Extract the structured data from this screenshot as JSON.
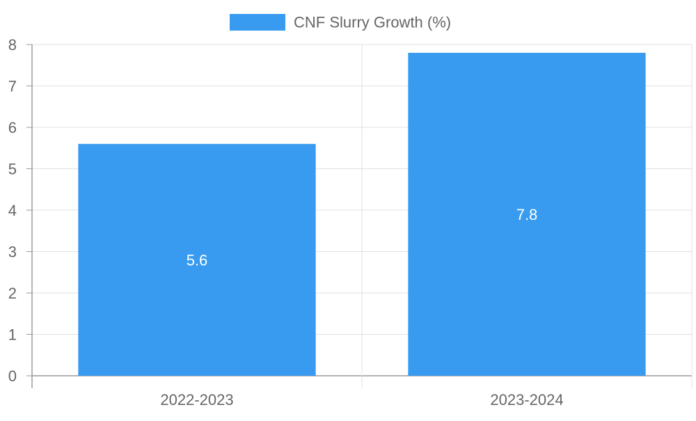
{
  "chart_data": {
    "type": "bar",
    "categories": [
      "2022-2023",
      "2023-2024"
    ],
    "series": [
      {
        "name": "CNF Slurry Growth (%)",
        "values": [
          5.6,
          7.8
        ],
        "color": "#389BF0"
      }
    ],
    "data_labels": [
      "5.6",
      "7.8"
    ],
    "y_ticks": [
      "0",
      "1",
      "2",
      "3",
      "4",
      "5",
      "6",
      "7",
      "8"
    ],
    "ylim": [
      0,
      8
    ],
    "grid": true,
    "legend_position": "top-center"
  }
}
